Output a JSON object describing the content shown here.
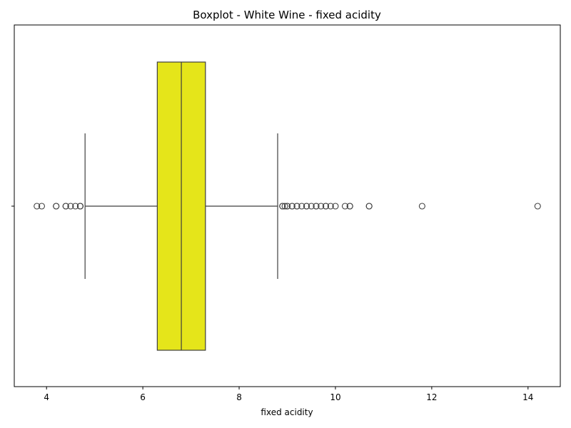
{
  "chart_data": {
    "type": "box",
    "title": "Boxplot - White Wine - fixed acidity",
    "xlabel": "fixed acidity",
    "ylabel": "",
    "orientation": "horizontal",
    "xlim": [
      3.33,
      14.67
    ],
    "xticks": [
      4,
      6,
      8,
      10,
      12,
      14
    ],
    "xtick_labels": [
      "4",
      "6",
      "8",
      "10",
      "12",
      "14"
    ],
    "box_color": "#e5e51a",
    "edge_color": "#3f3f3f",
    "grid": false,
    "stats": {
      "whisker_low": 4.8,
      "q1": 6.3,
      "median": 6.8,
      "q3": 7.3,
      "whisker_high": 8.8
    },
    "outliers": [
      3.8,
      3.9,
      4.2,
      4.2,
      4.4,
      4.4,
      4.5,
      4.6,
      4.7,
      4.7,
      4.7,
      8.9,
      8.9,
      8.95,
      9.0,
      9.0,
      9.1,
      9.1,
      9.2,
      9.2,
      9.3,
      9.4,
      9.4,
      9.5,
      9.6,
      9.6,
      9.7,
      9.8,
      9.8,
      9.9,
      10.0,
      10.2,
      10.3,
      10.3,
      10.7,
      10.7,
      11.8,
      14.2
    ]
  }
}
